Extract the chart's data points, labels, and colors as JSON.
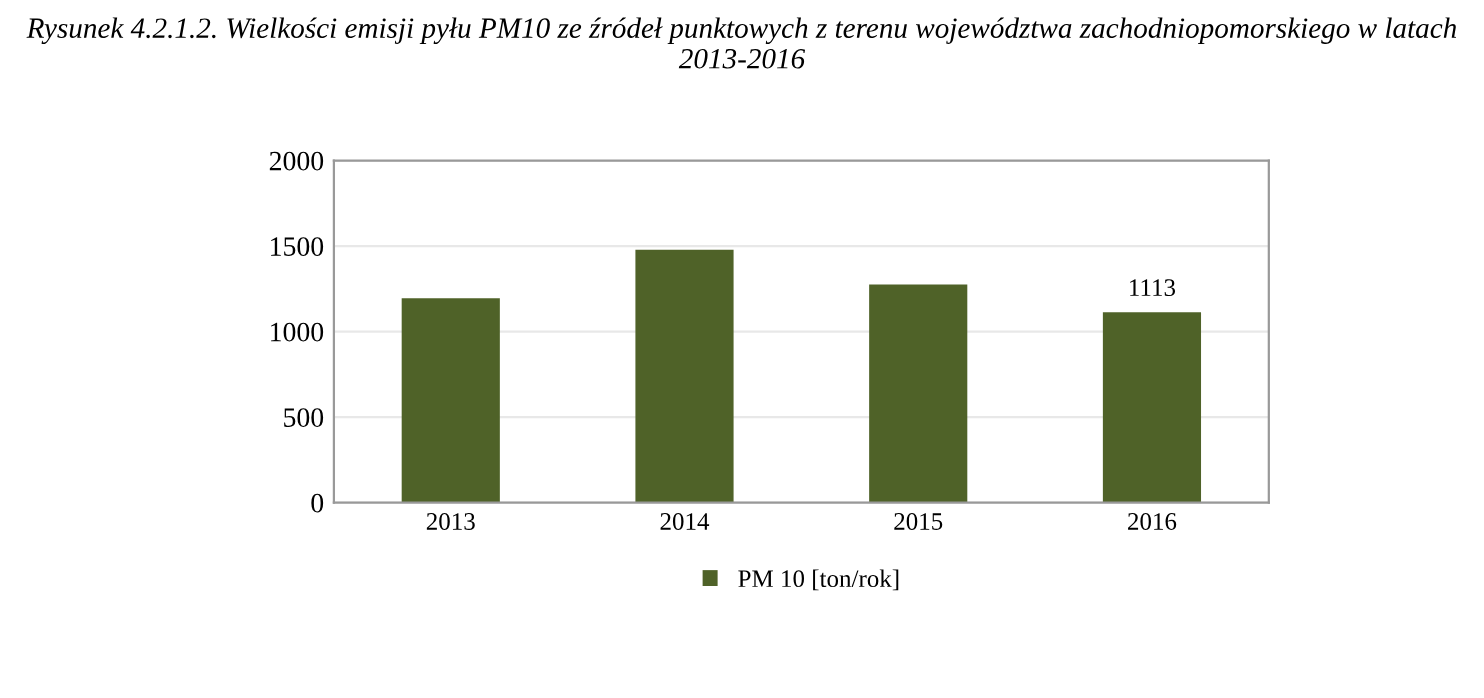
{
  "chart_data": {
    "type": "bar",
    "title": "Rysunek 4.2.1.2. Wielkości emisji pyłu PM10 ze źródeł punktowych z terenu województwa zachodniopomorskiego w latach 2013-2016",
    "categories": [
      "2013",
      "2014",
      "2015",
      "2016"
    ],
    "series": [
      {
        "name": "PM 10 [ton/rok]",
        "color": "#4f6228",
        "values": [
          1195,
          1479,
          1275,
          1113
        ],
        "value_labels": [
          null,
          null,
          null,
          "1113"
        ]
      }
    ],
    "ylim": [
      0,
      2000
    ],
    "yticks": [
      0,
      500,
      1000,
      1500,
      2000
    ],
    "grid": "y",
    "legend": "bottom"
  }
}
